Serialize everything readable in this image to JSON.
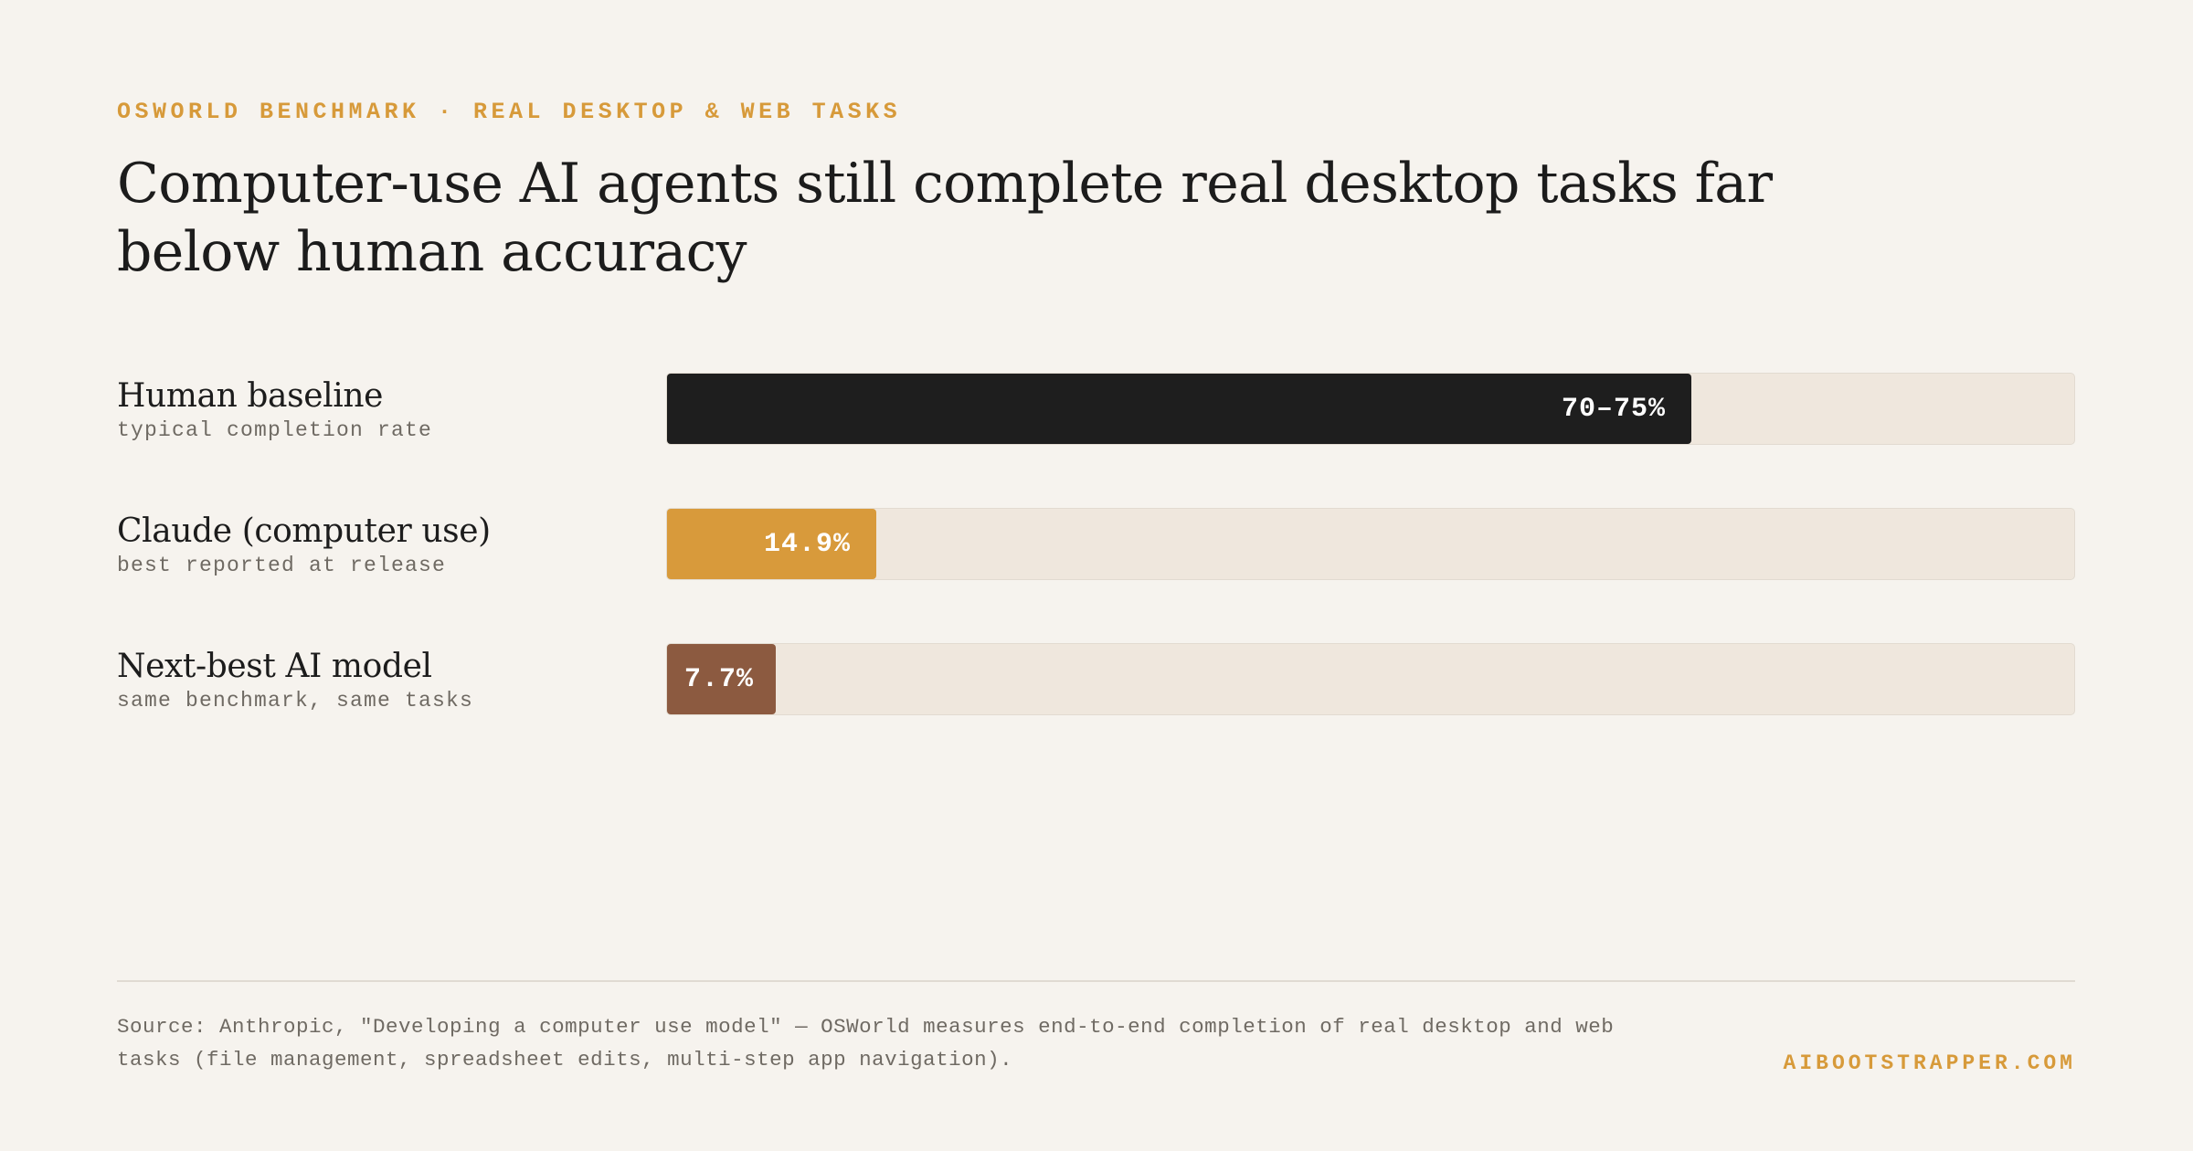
{
  "eyebrow": "OSWORLD BENCHMARK · REAL DESKTOP & WEB TASKS",
  "title": "Computer-use AI agents still complete real desktop tasks far below human accuracy",
  "chart_data": {
    "type": "bar",
    "orientation": "horizontal",
    "xlim": [
      0,
      100
    ],
    "grid": false,
    "categories": [
      "Human baseline",
      "Claude (computer use)",
      "Next-best AI model"
    ],
    "subtitles": [
      "typical completion rate",
      "best reported at release",
      "same benchmark, same tasks"
    ],
    "values": [
      72.8,
      14.9,
      7.7
    ],
    "value_labels": [
      "70–75%",
      "14.9%",
      "7.7%"
    ],
    "colors": [
      "#1e1e1e",
      "#d89a3b",
      "#8c5a40"
    ]
  },
  "footer": {
    "source": "Source: Anthropic, \"Developing a computer use model\" — OSWorld measures end-to-end completion of real desktop and web tasks (file management, spreadsheet edits, multi-step app navigation).",
    "brand": "AIBOOTSTRAPPER.COM"
  }
}
